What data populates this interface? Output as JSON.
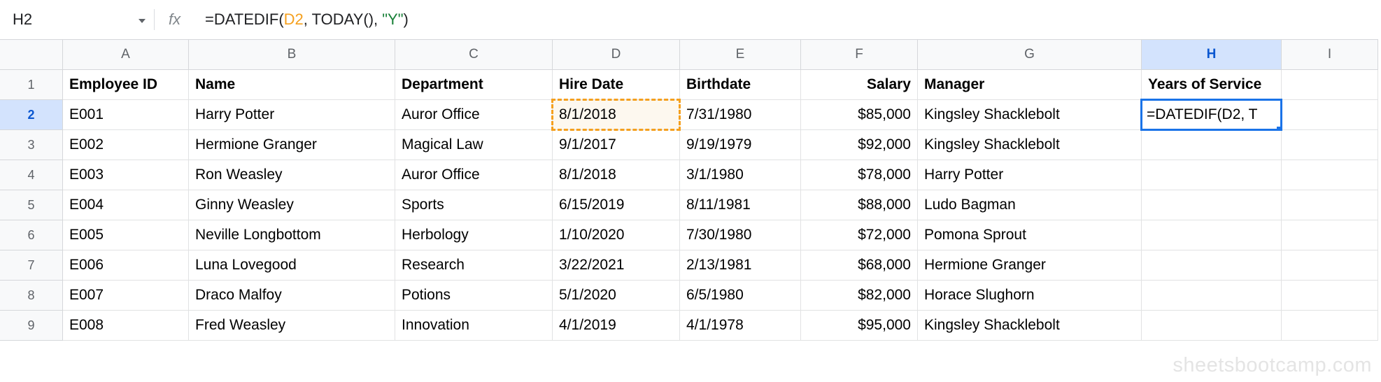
{
  "colors": {
    "reference_orange": "#f5a01e",
    "reference_fill": "#fdf8ef",
    "string_green": "#188038",
    "active_blue": "#1a73e8",
    "selected_header_bg": "#d3e3fd",
    "selected_header_text": "#0b57d0"
  },
  "formula_bar": {
    "cell_ref": "H2",
    "fx_label": "fx",
    "formula_full": "=DATEDIF(D2, TODAY(), \"Y\")",
    "tokens": [
      {
        "text": "=DATEDIF(",
        "style": "default"
      },
      {
        "text": "D2",
        "style": "reference"
      },
      {
        "text": ", TODAY(), ",
        "style": "default"
      },
      {
        "text": "\"Y\"",
        "style": "string"
      },
      {
        "text": ")",
        "style": "default"
      }
    ]
  },
  "selection": {
    "active_cell": "H2",
    "active_column": "H",
    "active_row": 2,
    "referenced_cell": "D2",
    "editing_text": "=DATEDIF(D2, T"
  },
  "grid": {
    "column_letters": [
      "A",
      "B",
      "C",
      "D",
      "E",
      "F",
      "G",
      "H",
      "I"
    ],
    "rows": [
      {
        "num": 1,
        "bold": true,
        "cells": {
          "A": "Employee ID",
          "B": "Name",
          "C": "Department",
          "D": "Hire Date",
          "E": "Birthdate",
          "F": "Salary",
          "G": "Manager",
          "H": "Years of Service",
          "I": ""
        }
      },
      {
        "num": 2,
        "cells": {
          "A": "E001",
          "B": "Harry Potter",
          "C": "Auror Office",
          "D": "8/1/2018",
          "E": "7/31/1980",
          "F": "$85,000",
          "G": "Kingsley Shacklebolt",
          "H": "",
          "I": ""
        }
      },
      {
        "num": 3,
        "cells": {
          "A": "E002",
          "B": "Hermione Granger",
          "C": "Magical Law",
          "D": "9/1/2017",
          "E": "9/19/1979",
          "F": "$92,000",
          "G": "Kingsley Shacklebolt",
          "H": "",
          "I": ""
        }
      },
      {
        "num": 4,
        "cells": {
          "A": "E003",
          "B": "Ron Weasley",
          "C": "Auror Office",
          "D": "8/1/2018",
          "E": "3/1/1980",
          "F": "$78,000",
          "G": "Harry Potter",
          "H": "",
          "I": ""
        }
      },
      {
        "num": 5,
        "cells": {
          "A": "E004",
          "B": "Ginny Weasley",
          "C": "Sports",
          "D": "6/15/2019",
          "E": "8/11/1981",
          "F": "$88,000",
          "G": "Ludo Bagman",
          "H": "",
          "I": ""
        }
      },
      {
        "num": 6,
        "cells": {
          "A": "E005",
          "B": "Neville Longbottom",
          "C": "Herbology",
          "D": "1/10/2020",
          "E": "7/30/1980",
          "F": "$72,000",
          "G": "Pomona Sprout",
          "H": "",
          "I": ""
        }
      },
      {
        "num": 7,
        "cells": {
          "A": "E006",
          "B": "Luna Lovegood",
          "C": "Research",
          "D": "3/22/2021",
          "E": "2/13/1981",
          "F": "$68,000",
          "G": "Hermione Granger",
          "H": "",
          "I": ""
        }
      },
      {
        "num": 8,
        "cells": {
          "A": "E007",
          "B": "Draco Malfoy",
          "C": "Potions",
          "D": "5/1/2020",
          "E": "6/5/1980",
          "F": "$82,000",
          "G": "Horace Slughorn",
          "H": "",
          "I": ""
        }
      },
      {
        "num": 9,
        "cells": {
          "A": "E008",
          "B": "Fred Weasley",
          "C": "Innovation",
          "D": "4/1/2019",
          "E": "4/1/1978",
          "F": "$95,000",
          "G": "Kingsley Shacklebolt",
          "H": "",
          "I": ""
        }
      }
    ]
  },
  "watermark": "sheetsbootcamp.com"
}
